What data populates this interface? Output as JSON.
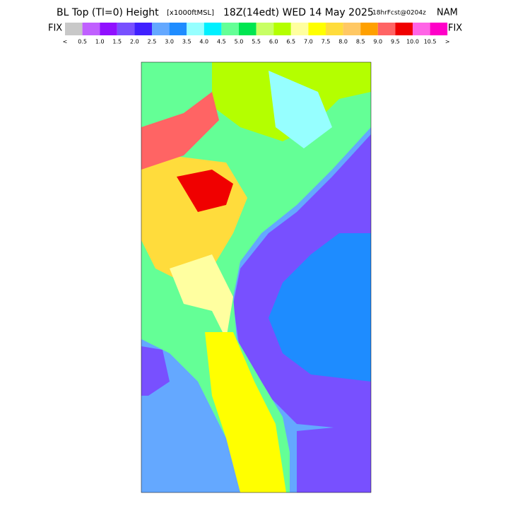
{
  "header": {
    "title": "BL Top (Tl=0) Height",
    "units": "[x1000ftMSL]",
    "time": "18Z(14edt) WED 14 May 2025",
    "forecast": "18hrFcst@0204z",
    "model": "NAM"
  },
  "legend": {
    "fix_left": "FIX",
    "fix_right": "FIX",
    "labels": [
      "<",
      "0.5",
      "1.0",
      "1.5",
      "2.0",
      "2.5",
      "3.0",
      "3.5",
      "4.0",
      "4.5",
      "5.0",
      "5.5",
      "6.0",
      "6.5",
      "7.0",
      "7.5",
      "8.0",
      "8.5",
      "9.0",
      "9.5",
      "10.0",
      "10.5",
      ">"
    ],
    "colors": [
      "#c8c8c8",
      "#c060ff",
      "#9010ff",
      "#7850ff",
      "#4020ff",
      "#64a8ff",
      "#1e8cff",
      "#96ffff",
      "#00f0ff",
      "#64ff96",
      "#00e650",
      "#c8ff64",
      "#b4ff00",
      "#ffffa0",
      "#ffff00",
      "#ffdc3c",
      "#ffc864",
      "#ffa000",
      "#ff6464",
      "#f00000",
      "#ff64e6",
      "#ff00c8"
    ]
  }
}
